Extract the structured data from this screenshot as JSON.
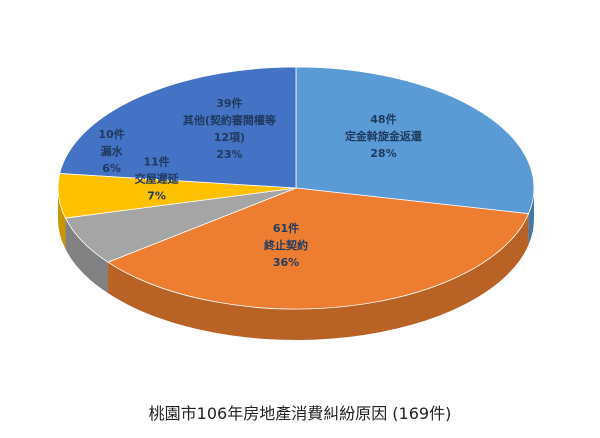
{
  "chart_data": {
    "type": "pie",
    "title": "桃園市106年房地產消費糾紛原因 (169件)",
    "total": 169,
    "slices": [
      {
        "label": "定金斡旋金返還",
        "count": "48件",
        "value": 48,
        "percent": "28%",
        "color": "#5b9bd5"
      },
      {
        "label": "終止契約",
        "count": "61件",
        "value": 61,
        "percent": "36%",
        "color": "#ed7d31"
      },
      {
        "label": "交屋遲延",
        "count": "11件",
        "value": 11,
        "percent": "7%",
        "color": "#a5a5a5"
      },
      {
        "label": "漏水",
        "count": "10件",
        "value": 10,
        "percent": "6%",
        "color": "#ffc000"
      },
      {
        "label": "其他(契約審閱權等 12項)",
        "count": "39件",
        "value": 39,
        "percent": "23%",
        "color": "#4472c4"
      }
    ]
  }
}
